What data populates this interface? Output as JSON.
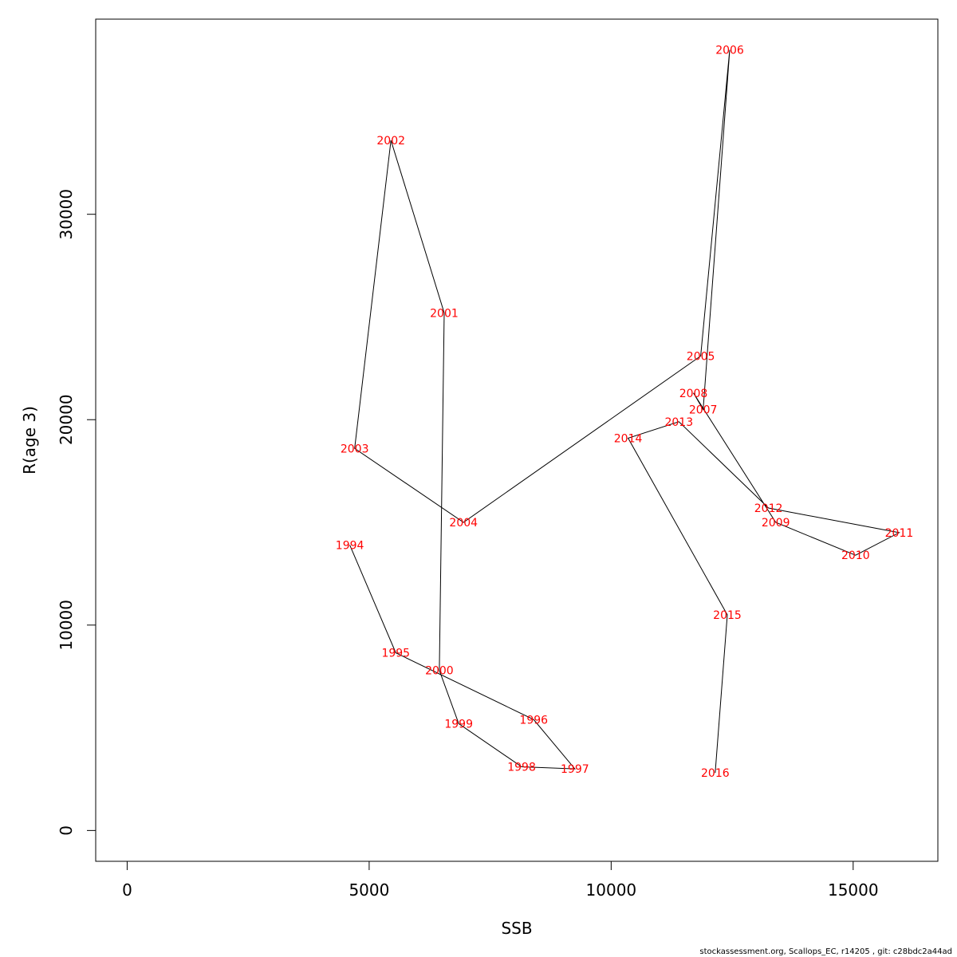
{
  "chart_data": {
    "type": "line",
    "xlabel": "SSB",
    "ylabel": "R(age 3)",
    "xlim": [
      -650,
      16750
    ],
    "ylim": [
      -1500,
      39500
    ],
    "xticks": [
      0,
      5000,
      10000,
      15000
    ],
    "yticks": [
      0,
      10000,
      20000,
      30000
    ],
    "label_color": "#ff0000",
    "line_color": "#000000",
    "points": [
      {
        "year": "1994",
        "x": 4600,
        "y": 13900
      },
      {
        "year": "1995",
        "x": 5550,
        "y": 8650
      },
      {
        "year": "1996",
        "x": 8400,
        "y": 5400
      },
      {
        "year": "1997",
        "x": 9250,
        "y": 3000
      },
      {
        "year": "1998",
        "x": 8150,
        "y": 3100
      },
      {
        "year": "1999",
        "x": 6850,
        "y": 5200
      },
      {
        "year": "2000",
        "x": 6450,
        "y": 7800
      },
      {
        "year": "2001",
        "x": 6550,
        "y": 25200
      },
      {
        "year": "2002",
        "x": 5450,
        "y": 33600
      },
      {
        "year": "2003",
        "x": 4700,
        "y": 18600
      },
      {
        "year": "2004",
        "x": 6950,
        "y": 15000
      },
      {
        "year": "2005",
        "x": 11850,
        "y": 23100
      },
      {
        "year": "2006",
        "x": 12450,
        "y": 38000
      },
      {
        "year": "2007",
        "x": 11900,
        "y": 20500
      },
      {
        "year": "2008",
        "x": 11700,
        "y": 21300
      },
      {
        "year": "2009",
        "x": 13400,
        "y": 15000
      },
      {
        "year": "2010",
        "x": 15050,
        "y": 13400
      },
      {
        "year": "2011",
        "x": 15950,
        "y": 14500
      },
      {
        "year": "2012",
        "x": 13250,
        "y": 15700
      },
      {
        "year": "2013",
        "x": 11400,
        "y": 19900
      },
      {
        "year": "2014",
        "x": 10350,
        "y": 19100
      },
      {
        "year": "2015",
        "x": 12400,
        "y": 10500
      },
      {
        "year": "2016",
        "x": 12150,
        "y": 2800
      }
    ]
  },
  "footer": "stockassessment.org, Scallops_EC, r14205 , git: c28bdc2a44ad"
}
